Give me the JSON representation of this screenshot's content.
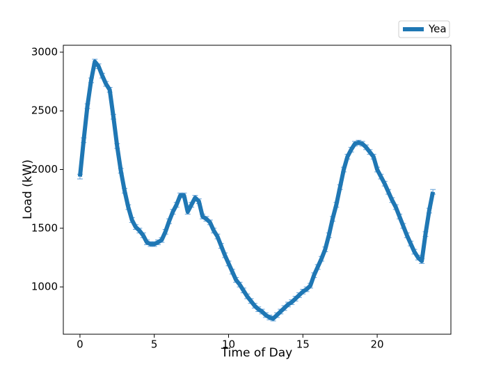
{
  "chart_data": {
    "type": "line",
    "x_label": "Time of Day",
    "y_label": "Load (kW)",
    "x": [
      0,
      0.25,
      0.5,
      0.75,
      1,
      1.25,
      1.5,
      1.75,
      2,
      2.25,
      2.5,
      2.75,
      3,
      3.25,
      3.5,
      3.75,
      4,
      4.25,
      4.5,
      4.75,
      5,
      5.25,
      5.5,
      5.75,
      6,
      6.25,
      6.5,
      6.75,
      7,
      7.25,
      7.5,
      7.75,
      8,
      8.25,
      8.5,
      8.75,
      9,
      9.25,
      9.5,
      9.75,
      10,
      10.25,
      10.5,
      10.75,
      11,
      11.25,
      11.5,
      11.75,
      12,
      12.25,
      12.5,
      12.75,
      13,
      13.25,
      13.5,
      13.75,
      14,
      14.25,
      14.5,
      14.75,
      15,
      15.25,
      15.5,
      15.75,
      16,
      16.25,
      16.5,
      16.75,
      17,
      17.25,
      17.5,
      17.75,
      18,
      18.25,
      18.5,
      18.75,
      19,
      19.25,
      19.5,
      19.75,
      20,
      20.25,
      20.5,
      20.75,
      21,
      21.25,
      21.5,
      21.75,
      22,
      22.25,
      22.5,
      22.75,
      23,
      23.25,
      23.5,
      23.75
    ],
    "series": [
      {
        "name": "Yea",
        "color": "#1f77b4",
        "values": [
          1940,
          2250,
          2540,
          2760,
          2920,
          2880,
          2800,
          2730,
          2680,
          2450,
          2200,
          1990,
          1820,
          1680,
          1570,
          1510,
          1480,
          1440,
          1380,
          1365,
          1365,
          1380,
          1400,
          1470,
          1560,
          1640,
          1700,
          1780,
          1780,
          1640,
          1700,
          1760,
          1730,
          1600,
          1580,
          1550,
          1480,
          1430,
          1350,
          1270,
          1200,
          1130,
          1060,
          1020,
          970,
          920,
          880,
          840,
          810,
          790,
          760,
          740,
          730,
          760,
          790,
          820,
          850,
          870,
          900,
          930,
          960,
          980,
          1010,
          1100,
          1170,
          1240,
          1320,
          1440,
          1580,
          1700,
          1850,
          2000,
          2110,
          2170,
          2220,
          2230,
          2220,
          2190,
          2150,
          2110,
          2000,
          1940,
          1880,
          1810,
          1740,
          1680,
          1600,
          1520,
          1440,
          1370,
          1300,
          1250,
          1220,
          1450,
          1650,
          1810
        ]
      }
    ],
    "error": 20,
    "error_color": "#5b9bd5",
    "xlim": [
      -1.12,
      24.96
    ],
    "ylim": [
      597,
      3059
    ],
    "xticks": [
      0,
      5,
      10,
      15,
      20
    ],
    "yticks": [
      1000,
      1500,
      2000,
      2500,
      3000
    ],
    "legend": "upper right"
  }
}
